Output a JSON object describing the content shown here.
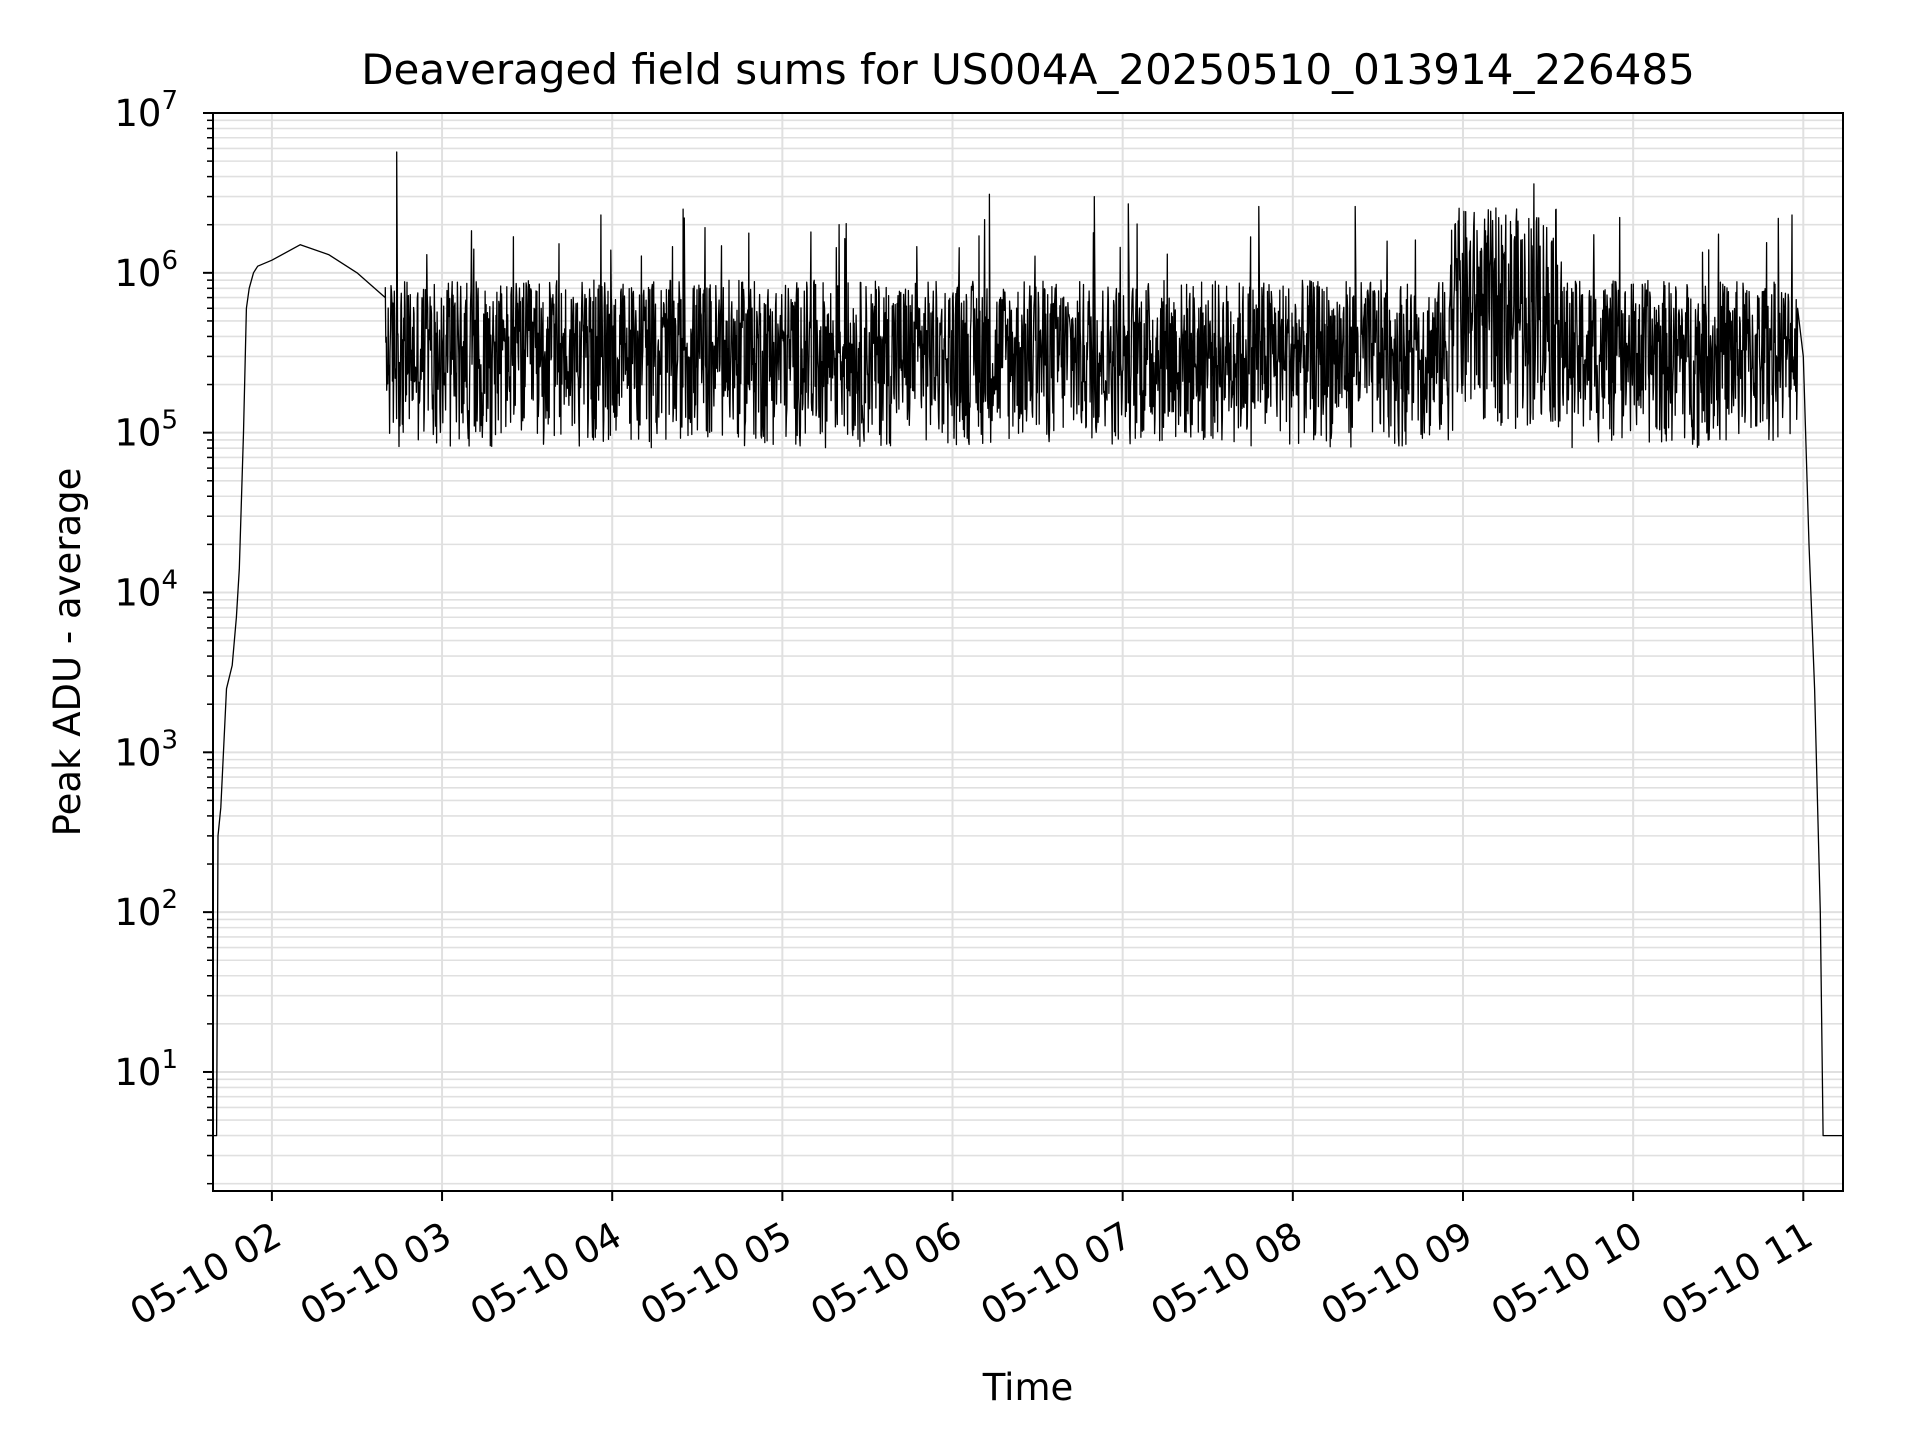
{
  "chart_data": {
    "type": "line",
    "title": "Deaveraged field sums for US004A_20250510_013914_226485",
    "xlabel": "Time",
    "ylabel": "Peak ADU - average",
    "yscale": "log",
    "ylim": [
      1.8,
      10000000
    ],
    "xlim": [
      "2025-05-10 01:39:14",
      "2025-05-10 11:14:00"
    ],
    "grid": true,
    "legend": "none",
    "line_color": "#000000",
    "grid_color": "#e0e0e0",
    "x_ticks": [
      "05-10 02",
      "05-10 03",
      "05-10 04",
      "05-10 05",
      "05-10 06",
      "05-10 07",
      "05-10 08",
      "05-10 09",
      "05-10 10",
      "05-10 11"
    ],
    "y_ticks": [
      {
        "value": 10,
        "base": "10",
        "exp": "1"
      },
      {
        "value": 100,
        "base": "10",
        "exp": "2"
      },
      {
        "value": 1000,
        "base": "10",
        "exp": "3"
      },
      {
        "value": 10000,
        "base": "10",
        "exp": "4"
      },
      {
        "value": 100000,
        "base": "10",
        "exp": "5"
      },
      {
        "value": 1000000,
        "base": "10",
        "exp": "6"
      },
      {
        "value": 10000000,
        "base": "10",
        "exp": "7"
      }
    ],
    "series": [
      {
        "x": [
          "2025-05-10 01:39:14",
          "2025-05-10 01:40:30",
          "2025-05-10 01:41:00",
          "2025-05-10 01:42:00",
          "2025-05-10 01:44:00",
          "2025-05-10 01:46:00",
          "2025-05-10 01:47:30",
          "2025-05-10 01:48:30",
          "2025-05-10 01:50:00",
          "2025-05-10 01:51:00",
          "2025-05-10 01:52:00",
          "2025-05-10 01:53:30",
          "2025-05-10 01:55:00",
          "2025-05-10 02:00:00",
          "2025-05-10 02:10:00",
          "2025-05-10 02:20:00",
          "2025-05-10 02:30:00",
          "2025-05-10 02:40:00",
          "2025-05-10 02:45:00",
          "2025-05-10 10:55:00",
          "2025-05-10 10:58:00",
          "2025-05-10 11:00:00",
          "2025-05-10 11:02:00",
          "2025-05-10 11:04:00",
          "2025-05-10 11:06:00",
          "2025-05-10 11:07:00",
          "2025-05-10 11:14:00"
        ],
        "y": [
          4,
          4,
          300,
          450,
          2500,
          3500,
          7000,
          14000,
          100000,
          600000,
          800000,
          1000000,
          1100000,
          1200000,
          1500000,
          1300000,
          1000000,
          700000,
          400000,
          750000,
          600000,
          300000,
          20000,
          2500,
          100,
          4,
          4
        ]
      }
    ],
    "noise_band": {
      "from": "2025-05-10 02:40:00",
      "to": "2025-05-10 10:58:00",
      "typical_low": 80000,
      "typical_high": 900000,
      "max_spike": 5700000,
      "max_spike_time": "2025-05-10 02:44:00",
      "high_cluster": {
        "from": "2025-05-10 08:55:00",
        "to": "2025-05-10 09:35:00",
        "peak": 3600000
      },
      "spikes": [
        {
          "x": "2025-05-10 02:44:00",
          "y": 5700000
        },
        {
          "x": "2025-05-10 03:56:00",
          "y": 2300000
        },
        {
          "x": "2025-05-10 04:25:00",
          "y": 2500000
        },
        {
          "x": "2025-05-10 05:20:00",
          "y": 2000000
        },
        {
          "x": "2025-05-10 06:13:00",
          "y": 3100000
        },
        {
          "x": "2025-05-10 06:50:00",
          "y": 3000000
        },
        {
          "x": "2025-05-10 07:02:00",
          "y": 2700000
        },
        {
          "x": "2025-05-10 07:48:00",
          "y": 2600000
        },
        {
          "x": "2025-05-10 08:22:00",
          "y": 2600000
        },
        {
          "x": "2025-05-10 09:25:00",
          "y": 3600000
        },
        {
          "x": "2025-05-10 10:56:00",
          "y": 2300000
        }
      ]
    }
  }
}
